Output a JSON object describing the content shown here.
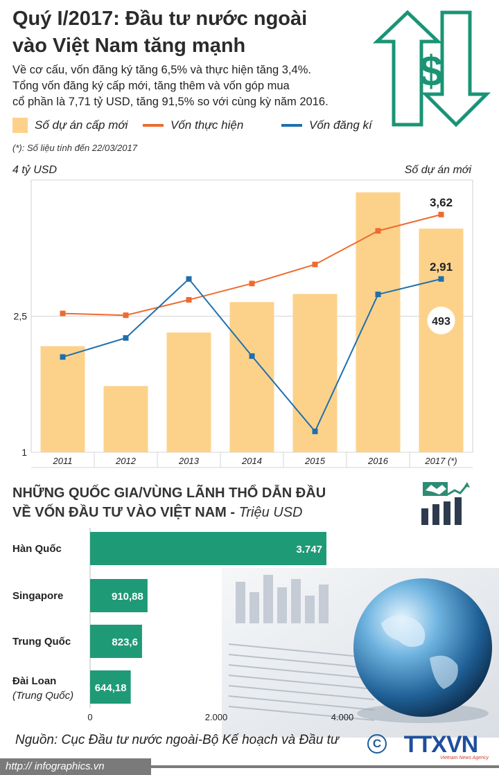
{
  "title": {
    "line1": "Quý I/2017:  Đầu tư nước ngoài",
    "line2": "vào Việt Nam tăng mạnh"
  },
  "subtitle": [
    "Về cơ cấu, vốn đăng ký tăng 6,5% và thực hiện tăng 3,4%.",
    "Tổng vốn đăng ký cấp mới, tăng thêm và vốn góp mua",
    "cổ phần là 7,71  tỷ USD, tăng 91,5% so với cùng kỳ năm 2016."
  ],
  "legend": {
    "bars": "Số dự án cấp mới",
    "realized": "Vốn thực hiện",
    "registered": "Vốn đăng kí"
  },
  "note": "(*): Số liệu tính đến 22/03/2017",
  "colors": {
    "bar": "#fcd28b",
    "realized": "#ee6b2f",
    "registered": "#1f6fae",
    "hbar": "#1f9a76",
    "arrow": "#1a9474"
  },
  "icons": [
    "dollar-arrows-icon",
    "handshake-chart-icon",
    "globe-photo",
    "copyright-icon",
    "ttxvn-logo"
  ],
  "chart_data": [
    {
      "type": "bar+line",
      "title": "",
      "y_left_label": "4 tỷ USD",
      "y_right_label": "Số dự án mới",
      "ylim": [
        1,
        4
      ],
      "yticks": [
        {
          "value": 4,
          "label": ""
        },
        {
          "value": 2.5,
          "label": "2,5"
        },
        {
          "value": 1,
          "label": "1"
        }
      ],
      "categories": [
        "2011",
        "2012",
        "2013",
        "2014",
        "2015",
        "2016",
        "2017 (*)"
      ],
      "bar_series": {
        "name": "Số dự án cấp mới",
        "values": [
          234,
          146,
          264,
          331,
          349,
          573,
          493
        ],
        "ylim": [
          0,
          600
        ]
      },
      "series": [
        {
          "name": "Vốn thực hiện",
          "values": [
            2.53,
            2.51,
            2.68,
            2.86,
            3.07,
            3.44,
            3.62
          ]
        },
        {
          "name": "Vốn đăng kí",
          "values": [
            2.05,
            2.26,
            2.91,
            2.06,
            1.23,
            2.74,
            2.91
          ]
        }
      ],
      "data_labels": {
        "realized_last": "3,62",
        "registered_last": "2,91",
        "projects_last": "493"
      },
      "grid": true
    },
    {
      "type": "bar",
      "title": "NHỮNG QUỐC GIA/VÙNG LÃNH THỔ DẪN ĐẦU VỀ VỐN ĐẦU TƯ VÀO VIỆT NAM - Triệu USD",
      "orientation": "horizontal",
      "categories": [
        "Hàn Quốc",
        "Singapore",
        "Trung Quốc",
        "Đài Loan (Trung Quốc)"
      ],
      "values": [
        3747,
        910.88,
        823.6,
        644.18
      ],
      "value_labels": [
        "3.747",
        "910,88",
        "823,6",
        "644,18"
      ],
      "xlim": [
        0,
        4000
      ],
      "xticks": [
        {
          "value": 0,
          "label": "0"
        },
        {
          "value": 2000,
          "label": "2.000"
        },
        {
          "value": 4000,
          "label": "4.000"
        }
      ],
      "xlabel": "",
      "ylabel": ""
    }
  ],
  "section2": {
    "line1": "NHỮNG QUỐC GIA/VÙNG LÃNH THỔ DẪN ĐẦU",
    "line2": "VỀ VỐN ĐẦU TƯ VÀO VIỆT NAM - ",
    "unit": "Triệu USD",
    "rows": [
      {
        "name": "Hàn Quốc",
        "sub": ""
      },
      {
        "name": "Singapore",
        "sub": ""
      },
      {
        "name": "Trung Quốc",
        "sub": ""
      },
      {
        "name": "Đài Loan",
        "sub": "(Trung Quốc)"
      }
    ]
  },
  "source": "Nguồn: Cục Đầu tư nước ngoài-Bộ Kế hoạch và Đầu tư",
  "footer": {
    "url": "http:// infographics.vn",
    "copyright": "C",
    "logo": "TTXVN",
    "logo_sub": "Vietnam News Agency"
  }
}
